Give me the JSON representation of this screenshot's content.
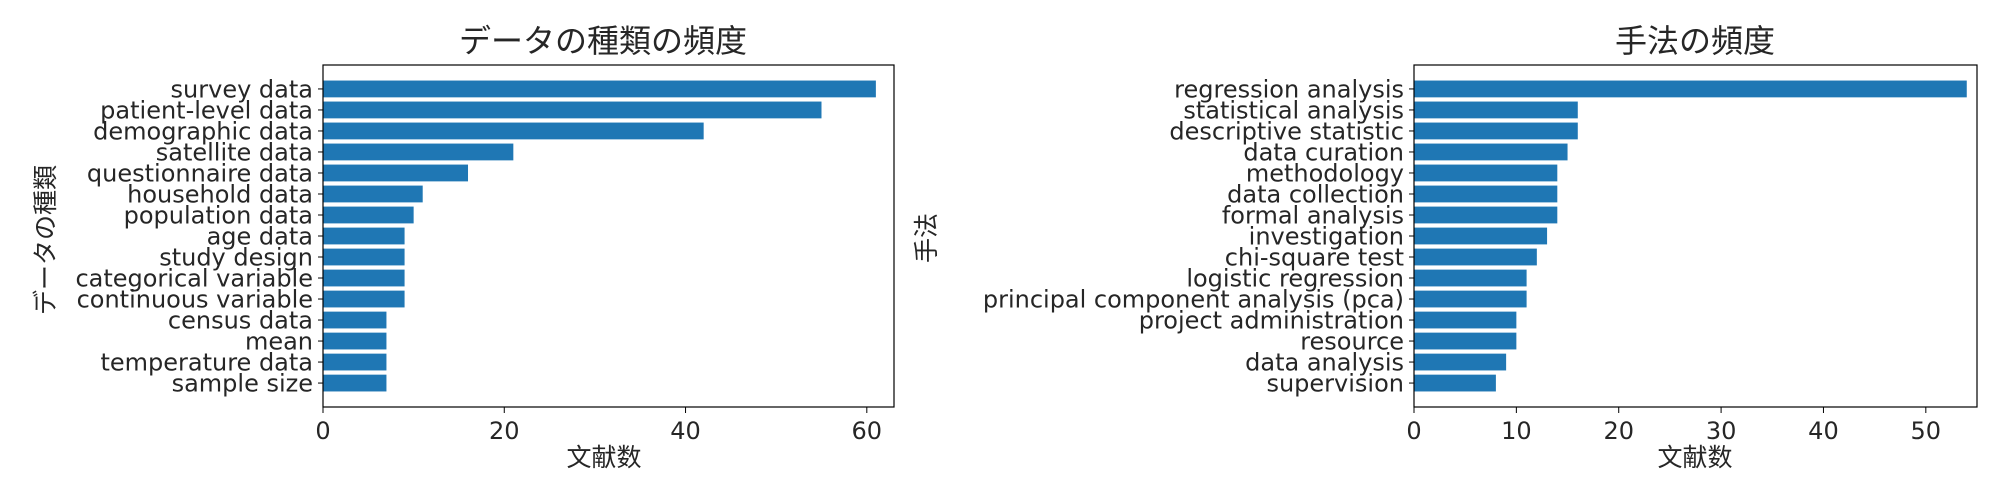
{
  "chart_data": [
    {
      "type": "bar",
      "orientation": "horizontal",
      "title": "データの種類の頻度",
      "xlabel": "文献数",
      "ylabel": "データの種類",
      "xlim": [
        0,
        63
      ],
      "xticks": [
        "0",
        "20",
        "40",
        "60"
      ],
      "grid": false,
      "color": "#1f77b4",
      "categories": [
        "survey data",
        "patient-level data",
        "demographic data",
        "satellite data",
        "questionnaire data",
        "household data",
        "population data",
        "age data",
        "study design",
        "categorical variable",
        "continuous variable",
        "census data",
        "mean",
        "temperature data",
        "sample size"
      ],
      "values": [
        61,
        55,
        42,
        21,
        16,
        11,
        10,
        9,
        9,
        9,
        9,
        7,
        7,
        7,
        7
      ]
    },
    {
      "type": "bar",
      "orientation": "horizontal",
      "title": "手法の頻度",
      "xlabel": "文献数",
      "ylabel": "手法",
      "xlim": [
        0,
        55
      ],
      "xticks": [
        "0",
        "10",
        "20",
        "30",
        "40",
        "50"
      ],
      "grid": false,
      "color": "#1f77b4",
      "categories": [
        "regression analysis",
        "statistical analysis",
        "descriptive statistic",
        "data curation",
        "methodology",
        "data collection",
        "formal analysis",
        "investigation",
        "chi-square test",
        "logistic regression",
        "principal component analysis (pca)",
        "project administration",
        "resource",
        "data analysis",
        "supervision"
      ],
      "values": [
        54,
        16,
        16,
        15,
        14,
        14,
        14,
        13,
        12,
        11,
        11,
        10,
        10,
        9,
        8
      ]
    }
  ]
}
